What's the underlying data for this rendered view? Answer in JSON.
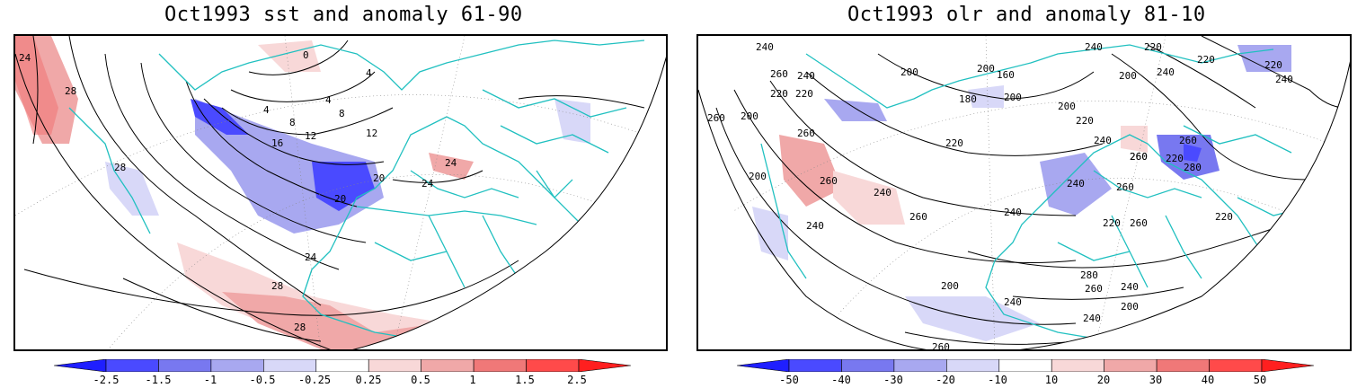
{
  "left_panel": {
    "title": "Oct1993 sst and anomaly 61-90",
    "contour_labels": [
      "24",
      "28",
      "28",
      "0",
      "4",
      "4",
      "4",
      "8",
      "8",
      "12",
      "12",
      "16",
      "20",
      "20",
      "24",
      "24",
      "24",
      "28",
      "28"
    ],
    "colorbar": {
      "ticks": [
        "-2.5",
        "-1.5",
        "-1",
        "-0.5",
        "-0.25",
        "0.25",
        "0.5",
        "1",
        "1.5",
        "2.5"
      ],
      "colors": [
        "#1f1fff",
        "#4a4aff",
        "#7878f0",
        "#a8a8f0",
        "#d8d8f8",
        "#ffffff",
        "#f8d8d8",
        "#f0a8a8",
        "#f07878",
        "#ff4a4a",
        "#ff1f1f"
      ]
    }
  },
  "right_panel": {
    "title": "Oct1993 olr and anomaly 81-10",
    "contour_labels": [
      "240",
      "260",
      "240",
      "220",
      "260",
      "200",
      "200",
      "220",
      "200",
      "160",
      "180",
      "200",
      "200",
      "220",
      "240",
      "200",
      "220",
      "240",
      "220",
      "220",
      "240",
      "240",
      "220",
      "260",
      "260",
      "260",
      "260",
      "280",
      "260",
      "240",
      "240",
      "260",
      "260",
      "240",
      "220",
      "260",
      "200",
      "240",
      "220",
      "220",
      "280",
      "260",
      "240",
      "200",
      "240",
      "200",
      "240",
      "260"
    ],
    "colorbar": {
      "ticks": [
        "-50",
        "-40",
        "-30",
        "-20",
        "-10",
        "10",
        "20",
        "30",
        "40",
        "50"
      ],
      "colors": [
        "#1f1fff",
        "#4a4aff",
        "#7878f0",
        "#a8a8f0",
        "#d8d8f8",
        "#ffffff",
        "#f8d8d8",
        "#f0a8a8",
        "#f07878",
        "#ff4a4a",
        "#ff1f1f"
      ]
    }
  },
  "colors": {
    "coastline": "#20c0c0",
    "contour": "#000000",
    "frame": "#000000"
  }
}
